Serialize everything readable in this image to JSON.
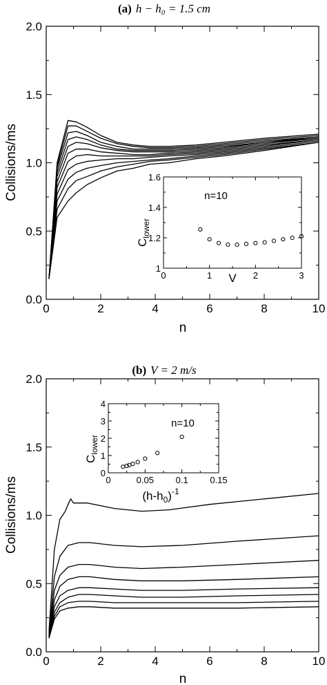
{
  "chart_data": [
    {
      "type": "line",
      "panel": "a",
      "title_bold": "(a)",
      "title_math": "h − h₀ = 1.5 cm",
      "xlabel": "n",
      "ylabel": "Collisions/ms",
      "xlim": [
        0,
        10
      ],
      "ylim": [
        0,
        2.0
      ],
      "xticks": [
        "0",
        "2",
        "4",
        "6",
        "8",
        "10"
      ],
      "yticks": [
        "0.0",
        "0.5",
        "1.0",
        "1.5",
        "2.0"
      ],
      "series": [
        {
          "x": [
            0.1,
            0.4,
            0.8,
            1.1,
            1.5,
            2.0,
            2.6,
            3.2,
            3.8,
            4.5,
            5.5,
            6.5,
            8.0,
            10.0
          ],
          "y": [
            0.15,
            1.0,
            1.31,
            1.3,
            1.26,
            1.2,
            1.15,
            1.13,
            1.12,
            1.12,
            1.13,
            1.15,
            1.18,
            1.21
          ]
        },
        {
          "x": [
            0.1,
            0.4,
            0.8,
            1.1,
            1.5,
            2.0,
            2.6,
            3.2,
            3.8,
            4.5,
            5.5,
            6.5,
            8.0,
            10.0
          ],
          "y": [
            0.15,
            0.98,
            1.27,
            1.27,
            1.23,
            1.18,
            1.14,
            1.12,
            1.11,
            1.11,
            1.12,
            1.14,
            1.17,
            1.2
          ]
        },
        {
          "x": [
            0.1,
            0.4,
            0.8,
            1.1,
            1.5,
            2.0,
            2.6,
            3.2,
            3.8,
            4.5,
            5.5,
            6.5,
            8.0,
            10.0
          ],
          "y": [
            0.15,
            0.96,
            1.22,
            1.23,
            1.2,
            1.15,
            1.12,
            1.1,
            1.1,
            1.1,
            1.11,
            1.13,
            1.16,
            1.19
          ]
        },
        {
          "x": [
            0.1,
            0.4,
            0.8,
            1.1,
            1.5,
            2.0,
            2.6,
            3.2,
            3.8,
            4.5,
            5.5,
            6.5,
            8.0,
            10.0
          ],
          "y": [
            0.15,
            0.93,
            1.17,
            1.19,
            1.17,
            1.13,
            1.1,
            1.09,
            1.09,
            1.09,
            1.1,
            1.12,
            1.15,
            1.19
          ]
        },
        {
          "x": [
            0.1,
            0.4,
            0.8,
            1.1,
            1.5,
            2.0,
            2.6,
            3.2,
            3.8,
            4.5,
            5.5,
            6.5,
            8.0,
            10.0
          ],
          "y": [
            0.15,
            0.9,
            1.12,
            1.15,
            1.14,
            1.11,
            1.09,
            1.08,
            1.08,
            1.08,
            1.09,
            1.11,
            1.15,
            1.18
          ]
        },
        {
          "x": [
            0.1,
            0.4,
            0.8,
            1.1,
            1.5,
            2.0,
            2.6,
            3.2,
            3.8,
            4.5,
            5.5,
            6.5,
            8.0,
            10.0
          ],
          "y": [
            0.15,
            0.86,
            1.07,
            1.1,
            1.1,
            1.08,
            1.07,
            1.06,
            1.06,
            1.07,
            1.08,
            1.1,
            1.14,
            1.18
          ]
        },
        {
          "x": [
            0.1,
            0.4,
            0.8,
            1.1,
            1.5,
            2.0,
            2.6,
            3.2,
            3.8,
            4.5,
            5.5,
            6.5,
            8.0,
            10.0
          ],
          "y": [
            0.15,
            0.82,
            1.01,
            1.05,
            1.06,
            1.05,
            1.05,
            1.05,
            1.05,
            1.06,
            1.07,
            1.09,
            1.13,
            1.17
          ]
        },
        {
          "x": [
            0.1,
            0.4,
            0.8,
            1.1,
            1.5,
            2.0,
            2.6,
            3.2,
            3.8,
            4.5,
            5.5,
            6.5,
            8.0,
            10.0
          ],
          "y": [
            0.15,
            0.77,
            0.95,
            0.99,
            1.01,
            1.02,
            1.03,
            1.03,
            1.04,
            1.05,
            1.06,
            1.08,
            1.12,
            1.17
          ]
        },
        {
          "x": [
            0.1,
            0.4,
            0.8,
            1.1,
            1.5,
            2.0,
            2.6,
            3.2,
            3.8,
            4.5,
            5.5,
            6.5,
            8.0,
            10.0
          ],
          "y": [
            0.15,
            0.72,
            0.88,
            0.93,
            0.96,
            0.98,
            1.0,
            1.01,
            1.02,
            1.03,
            1.05,
            1.07,
            1.11,
            1.16
          ]
        },
        {
          "x": [
            0.1,
            0.4,
            0.8,
            1.1,
            1.5,
            2.0,
            2.6,
            3.2,
            3.8,
            4.5,
            5.5,
            6.5,
            8.0,
            10.0
          ],
          "y": [
            0.15,
            0.66,
            0.81,
            0.87,
            0.9,
            0.94,
            0.97,
            0.99,
            1.01,
            1.02,
            1.04,
            1.06,
            1.1,
            1.15
          ]
        },
        {
          "x": [
            0.1,
            0.4,
            0.8,
            1.1,
            1.5,
            2.0,
            2.6,
            3.2,
            3.8,
            4.5,
            5.5,
            6.5,
            8.0,
            10.0
          ],
          "y": [
            0.15,
            0.6,
            0.72,
            0.78,
            0.84,
            0.89,
            0.94,
            0.96,
            0.99,
            1.0,
            1.03,
            1.05,
            1.09,
            1.15
          ]
        }
      ],
      "inset": {
        "type": "scatter",
        "xlabel": "V",
        "ylabel_main": "C",
        "ylabel_sub": "lower",
        "annotation": "n=10",
        "xlim": [
          0,
          3
        ],
        "ylim": [
          1.0,
          1.6
        ],
        "xticks": [
          "0",
          "1",
          "2",
          "3"
        ],
        "yticks": [
          "1",
          "1.2",
          "1.4",
          "1.6"
        ],
        "x": [
          0.8,
          1.0,
          1.2,
          1.4,
          1.6,
          1.8,
          2.0,
          2.2,
          2.4,
          2.6,
          2.8,
          3.0
        ],
        "y": [
          1.255,
          1.19,
          1.165,
          1.155,
          1.155,
          1.16,
          1.165,
          1.17,
          1.18,
          1.19,
          1.2,
          1.21
        ]
      }
    },
    {
      "type": "line",
      "panel": "b",
      "title_bold": "(b)",
      "title_math": "V = 2 m/s",
      "xlabel": "n",
      "ylabel": "Collisions/ms",
      "xlim": [
        0,
        10
      ],
      "ylim": [
        0,
        2.0
      ],
      "xticks": [
        "0",
        "2",
        "4",
        "6",
        "8",
        "10"
      ],
      "yticks": [
        "0.0",
        "0.5",
        "1.0",
        "1.5",
        "2.0"
      ],
      "series": [
        {
          "x": [
            0.1,
            0.3,
            0.5,
            0.7,
            0.8,
            0.9,
            1.0,
            1.5,
            2.5,
            3.5,
            4.5,
            6.0,
            8.0,
            10.0
          ],
          "y": [
            0.15,
            0.75,
            0.97,
            1.03,
            1.08,
            1.12,
            1.09,
            1.09,
            1.05,
            1.03,
            1.04,
            1.08,
            1.12,
            1.16
          ]
        },
        {
          "x": [
            0.1,
            0.3,
            0.5,
            0.8,
            1.2,
            1.6,
            2.5,
            3.5,
            5.0,
            7.0,
            10.0
          ],
          "y": [
            0.13,
            0.55,
            0.7,
            0.78,
            0.8,
            0.8,
            0.78,
            0.77,
            0.78,
            0.81,
            0.85
          ]
        },
        {
          "x": [
            0.1,
            0.3,
            0.5,
            0.8,
            1.2,
            1.6,
            2.5,
            3.5,
            5.0,
            7.0,
            10.0
          ],
          "y": [
            0.12,
            0.45,
            0.56,
            0.62,
            0.64,
            0.64,
            0.62,
            0.61,
            0.62,
            0.64,
            0.67
          ]
        },
        {
          "x": [
            0.1,
            0.3,
            0.5,
            0.8,
            1.2,
            1.6,
            2.5,
            3.5,
            5.0,
            7.0,
            10.0
          ],
          "y": [
            0.11,
            0.38,
            0.48,
            0.53,
            0.55,
            0.55,
            0.53,
            0.52,
            0.52,
            0.53,
            0.55
          ]
        },
        {
          "x": [
            0.1,
            0.3,
            0.5,
            0.8,
            1.2,
            1.6,
            2.5,
            3.5,
            5.0,
            7.0,
            10.0
          ],
          "y": [
            0.11,
            0.33,
            0.41,
            0.45,
            0.47,
            0.47,
            0.46,
            0.45,
            0.45,
            0.46,
            0.47
          ]
        },
        {
          "x": [
            0.1,
            0.3,
            0.5,
            0.8,
            1.2,
            1.6,
            2.5,
            3.5,
            5.0,
            7.0,
            10.0
          ],
          "y": [
            0.1,
            0.29,
            0.36,
            0.4,
            0.42,
            0.42,
            0.41,
            0.4,
            0.4,
            0.41,
            0.42
          ]
        },
        {
          "x": [
            0.1,
            0.3,
            0.5,
            0.8,
            1.2,
            1.6,
            2.5,
            3.5,
            5.0,
            7.0,
            10.0
          ],
          "y": [
            0.1,
            0.26,
            0.33,
            0.36,
            0.37,
            0.37,
            0.36,
            0.36,
            0.36,
            0.36,
            0.37
          ]
        },
        {
          "x": [
            0.1,
            0.3,
            0.5,
            0.8,
            1.2,
            1.6,
            2.5,
            3.5,
            5.0,
            7.0,
            10.0
          ],
          "y": [
            0.1,
            0.24,
            0.3,
            0.32,
            0.33,
            0.33,
            0.32,
            0.32,
            0.32,
            0.32,
            0.33
          ]
        }
      ],
      "inset": {
        "type": "scatter",
        "xlabel_main": "(h-h",
        "xlabel_sub": "0",
        "xlabel_end": ")",
        "xlabel_sup": "-1",
        "ylabel_main": "C",
        "ylabel_sub": "lower",
        "annotation": "n=10",
        "xlim": [
          0,
          0.15
        ],
        "ylim": [
          0,
          4
        ],
        "xticks": [
          "0",
          "0.05",
          "0.1",
          "0.15"
        ],
        "yticks": [
          "0",
          "1",
          "2",
          "3",
          "4"
        ],
        "x": [
          0.02,
          0.025,
          0.0286,
          0.0333,
          0.04,
          0.05,
          0.0667,
          0.1
        ],
        "y": [
          0.35,
          0.4,
          0.45,
          0.52,
          0.62,
          0.82,
          1.15,
          2.08
        ]
      }
    }
  ]
}
